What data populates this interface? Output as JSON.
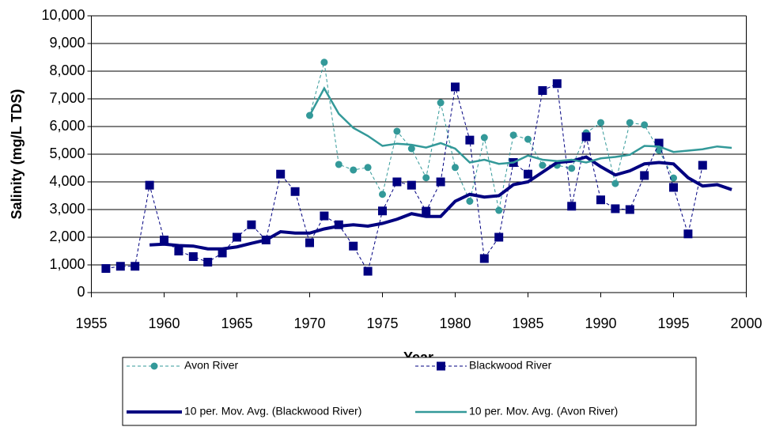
{
  "chart_data": {
    "type": "line",
    "y_label": "Salinity (mg/L TDS)",
    "x_label": "Year",
    "x": [
      1956,
      1957,
      1958,
      1959,
      1960,
      1961,
      1962,
      1963,
      1964,
      1965,
      1966,
      1967,
      1968,
      1969,
      1970,
      1971,
      1972,
      1973,
      1974,
      1975,
      1976,
      1977,
      1978,
      1979,
      1980,
      1981,
      1982,
      1983,
      1984,
      1985,
      1986,
      1987,
      1988,
      1989,
      1990,
      1991,
      1992,
      1993,
      1994,
      1995,
      1996,
      1997,
      1998,
      1999
    ],
    "series": [
      {
        "name": "Avon River",
        "color": "#339999",
        "dashed": true,
        "marker": "circle",
        "values": [
          null,
          null,
          null,
          null,
          null,
          null,
          null,
          null,
          null,
          null,
          null,
          null,
          null,
          null,
          6400,
          8320,
          4630,
          4430,
          4520,
          3550,
          5830,
          5200,
          4150,
          6860,
          4520,
          3300,
          5600,
          2970,
          5690,
          5540,
          4600,
          4600,
          4490,
          5770,
          6140,
          3940,
          6140,
          6060,
          5140,
          4140,
          null,
          null,
          null,
          null
        ]
      },
      {
        "name": "Blackwood River",
        "color": "#000080",
        "dashed": true,
        "marker": "square",
        "values": [
          870,
          950,
          950,
          3880,
          1900,
          1500,
          1300,
          1100,
          1430,
          2000,
          2450,
          1900,
          4280,
          3650,
          1800,
          2770,
          2450,
          1680,
          770,
          2950,
          4000,
          3880,
          2940,
          4000,
          7430,
          5510,
          1230,
          2000,
          4700,
          4280,
          7300,
          7550,
          3120,
          5630,
          3350,
          3030,
          3000,
          4230,
          5400,
          3800,
          2120,
          4600,
          null,
          null
        ]
      },
      {
        "name": "10 per. Mov. Avg. (Blackwood River)",
        "color": "#000080",
        "dashed": false,
        "values": [
          null,
          null,
          null,
          1720,
          1750,
          1700,
          1680,
          1580,
          1580,
          1650,
          1780,
          1900,
          2200,
          2150,
          2150,
          2300,
          2400,
          2450,
          2400,
          2500,
          2650,
          2850,
          2750,
          2750,
          3300,
          3550,
          3450,
          3500,
          3900,
          4000,
          4350,
          4700,
          4750,
          4900,
          4550,
          4250,
          4400,
          4650,
          4700,
          4650,
          4150,
          3850,
          3900,
          3720
        ]
      },
      {
        "name": "10 per. Mov. Avg. (Avon River)",
        "color": "#339999",
        "dashed": false,
        "values": [
          null,
          null,
          null,
          null,
          null,
          null,
          null,
          null,
          null,
          null,
          null,
          null,
          null,
          null,
          6400,
          7380,
          6460,
          5950,
          5660,
          5300,
          5380,
          5340,
          5240,
          5400,
          5200,
          4700,
          4800,
          4650,
          4700,
          4950,
          4800,
          4750,
          4800,
          4700,
          4850,
          4900,
          4980,
          5300,
          5280,
          5080,
          5130,
          5180,
          5280,
          5230
        ]
      }
    ],
    "xlim": [
      1955,
      2000
    ],
    "xticks": [
      1955,
      1960,
      1965,
      1970,
      1975,
      1980,
      1985,
      1990,
      1995,
      2000
    ],
    "ylim": [
      0,
      10000
    ],
    "yticks": [
      0,
      {
        "value": 1000,
        "label": "1,000"
      },
      {
        "value": 2000,
        "label": "2,000"
      },
      {
        "value": 3000,
        "label": "3,000"
      },
      {
        "value": 4000,
        "label": "4,000"
      },
      {
        "value": 5000,
        "label": "5,000"
      },
      {
        "value": 6000,
        "label": "6,000"
      },
      {
        "value": 7000,
        "label": "7,000"
      },
      {
        "value": 8000,
        "label": "8,000"
      },
      {
        "value": 9000,
        "label": "9,000"
      },
      {
        "value": 10000,
        "label": "10,000"
      }
    ],
    "grid": true,
    "legend": "bottom"
  }
}
